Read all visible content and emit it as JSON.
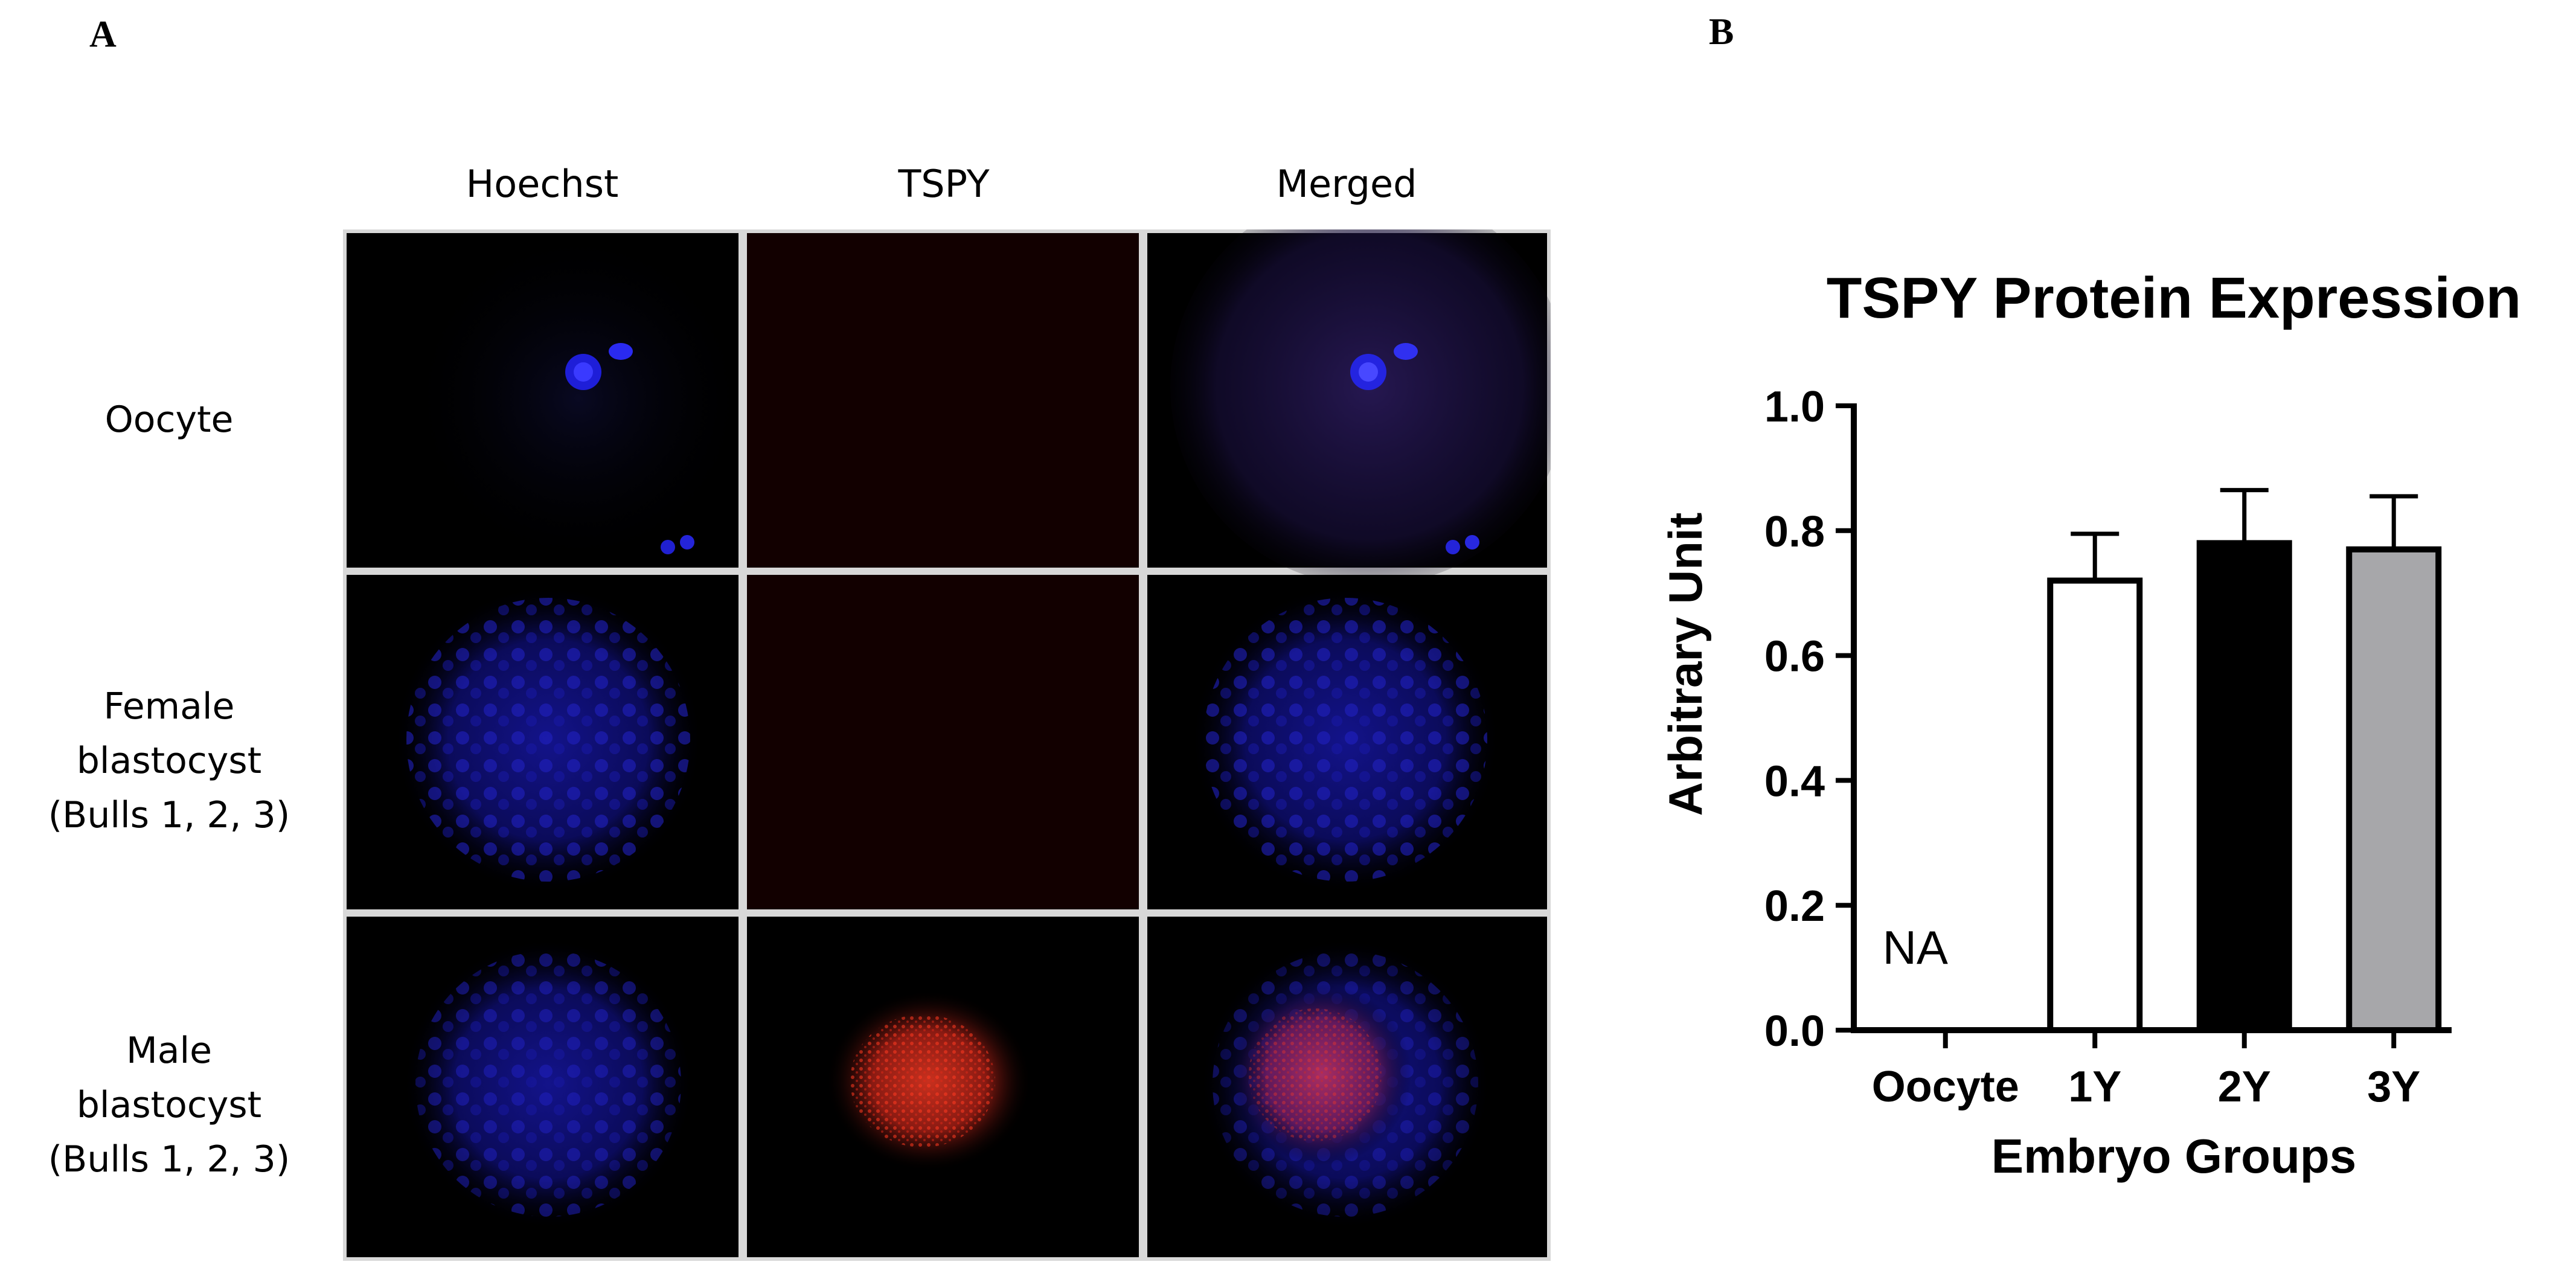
{
  "panel_a": {
    "letter": "A",
    "columns": [
      "Hoechst",
      "TSPY",
      "Merged"
    ],
    "rows": [
      {
        "lines": [
          "Oocyte"
        ]
      },
      {
        "lines": [
          "Female",
          "blastocyst",
          "(Bulls 1, 2, 3)"
        ]
      },
      {
        "lines": [
          "Male",
          "blastocyst",
          "(Bulls 1, 2, 3)"
        ]
      }
    ]
  },
  "panel_b": {
    "letter": "B"
  },
  "chart_data": {
    "type": "bar",
    "title": "TSPY Protein Expression",
    "xlabel": "Embryo Groups",
    "ylabel": "Arbitrary Unit",
    "ylim": [
      0,
      1.0
    ],
    "yticks": [
      "0.0",
      "0.2",
      "0.4",
      "0.6",
      "0.8",
      "1.0"
    ],
    "categories": [
      "Oocyte",
      "1Y",
      "2Y",
      "3Y"
    ],
    "values": [
      null,
      0.72,
      0.78,
      0.77
    ],
    "errors": [
      null,
      0.075,
      0.085,
      0.085
    ],
    "bar_colors": [
      "#ffffff",
      "#ffffff",
      "#000000",
      "#a7a7aa"
    ],
    "annotation": "NA",
    "grid": false
  }
}
